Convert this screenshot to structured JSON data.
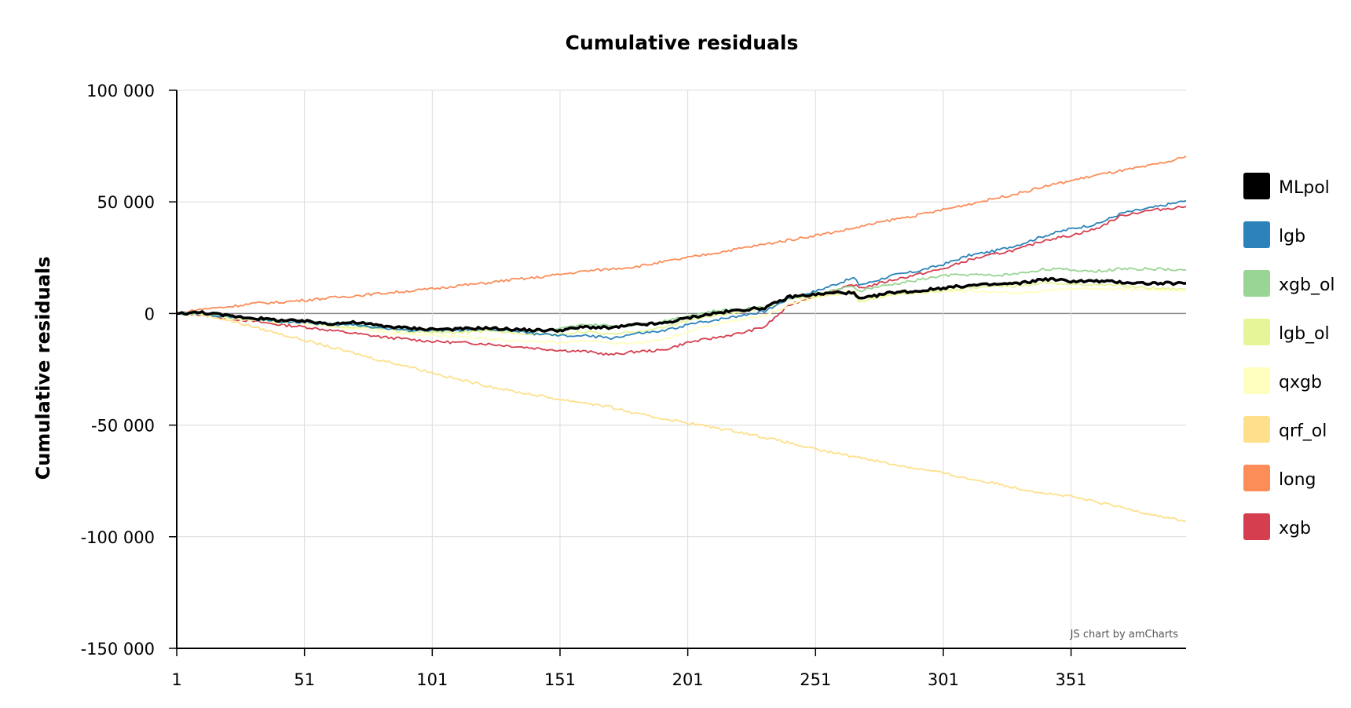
{
  "chart_data": {
    "type": "line",
    "title": "Cumulative residuals",
    "xlabel": "",
    "ylabel": "Cumulative residuals",
    "xlim": [
      1,
      396
    ],
    "ylim": [
      -150000,
      100000
    ],
    "x_ticks": [
      1,
      51,
      101,
      151,
      201,
      251,
      301,
      351
    ],
    "x_tick_labels": [
      "1",
      "51",
      "101",
      "151",
      "201",
      "251",
      "301",
      "351"
    ],
    "y_ticks": [
      100000,
      50000,
      0,
      -50000,
      -100000,
      -150000
    ],
    "y_tick_labels": [
      "100 000",
      "50 000",
      "0",
      "-50 000",
      "-100 000",
      "-150 000"
    ],
    "grid": true,
    "legend_position": "right",
    "credit": "JS chart by amCharts",
    "series": [
      {
        "name": "MLpol",
        "color": "#000000",
        "width": 3.5,
        "x": [
          1,
          11,
          21,
          31,
          41,
          51,
          61,
          71,
          81,
          91,
          101,
          111,
          121,
          131,
          141,
          151,
          161,
          171,
          181,
          191,
          201,
          211,
          221,
          231,
          241,
          251,
          261,
          266,
          268,
          271,
          281,
          291,
          301,
          311,
          321,
          331,
          341,
          351,
          361,
          371,
          381,
          396
        ],
        "y": [
          0,
          500,
          -1000,
          -2000,
          -3000,
          -3500,
          -4500,
          -4000,
          -5500,
          -6500,
          -7000,
          -7000,
          -6500,
          -7000,
          -7500,
          -7500,
          -6000,
          -6500,
          -5000,
          -4500,
          -2000,
          0,
          1500,
          2500,
          7500,
          8500,
          9500,
          9000,
          6500,
          7000,
          9500,
          10000,
          11500,
          12500,
          13000,
          13500,
          15500,
          14500,
          14500,
          14000,
          13500,
          13500
        ]
      },
      {
        "name": "lgb",
        "color": "#2b83ba",
        "width": 1.8,
        "x": [
          1,
          11,
          21,
          31,
          41,
          51,
          61,
          71,
          81,
          91,
          101,
          111,
          121,
          131,
          141,
          151,
          161,
          171,
          181,
          191,
          201,
          211,
          221,
          231,
          241,
          251,
          261,
          266,
          268,
          271,
          281,
          291,
          301,
          311,
          321,
          331,
          341,
          351,
          361,
          371,
          381,
          396
        ],
        "y": [
          0,
          0,
          -1500,
          -2500,
          -3500,
          -4000,
          -5000,
          -5000,
          -6500,
          -7500,
          -7500,
          -7500,
          -7000,
          -7500,
          -9000,
          -10000,
          -10000,
          -11000,
          -9000,
          -8000,
          -5000,
          -3000,
          -1000,
          1000,
          7000,
          10000,
          14000,
          16000,
          13000,
          13500,
          17000,
          19000,
          22000,
          26000,
          28000,
          31000,
          35000,
          38000,
          40000,
          45000,
          47000,
          50500
        ]
      },
      {
        "name": "xgb_ol",
        "color": "#99d594",
        "width": 1.8,
        "x": [
          1,
          11,
          21,
          31,
          41,
          51,
          61,
          71,
          81,
          91,
          101,
          111,
          121,
          131,
          141,
          151,
          161,
          171,
          181,
          191,
          201,
          211,
          221,
          231,
          241,
          251,
          261,
          266,
          268,
          271,
          281,
          291,
          301,
          311,
          321,
          331,
          341,
          351,
          361,
          371,
          381,
          396
        ],
        "y": [
          0,
          0,
          -1000,
          -2000,
          -3000,
          -3500,
          -4500,
          -5000,
          -6000,
          -7000,
          -7500,
          -7500,
          -7000,
          -7500,
          -8000,
          -7000,
          -5000,
          -5500,
          -5000,
          -3500,
          -1000,
          1000,
          2000,
          3000,
          7000,
          9000,
          11000,
          12000,
          10000,
          11000,
          13000,
          15000,
          17000,
          17500,
          17000,
          18000,
          20000,
          19500,
          19000,
          20000,
          20000,
          19500
        ]
      },
      {
        "name": "lgb_ol",
        "color": "#e6f598",
        "width": 1.8,
        "x": [
          1,
          11,
          21,
          31,
          41,
          51,
          61,
          71,
          81,
          91,
          101,
          111,
          121,
          131,
          141,
          151,
          161,
          171,
          181,
          191,
          201,
          211,
          221,
          231,
          241,
          251,
          261,
          266,
          268,
          271,
          281,
          291,
          301,
          311,
          321,
          331,
          341,
          351,
          361,
          371,
          381,
          396
        ],
        "y": [
          0,
          0,
          -1500,
          -2500,
          -3500,
          -4000,
          -5500,
          -6000,
          -7000,
          -8000,
          -8500,
          -8500,
          -8000,
          -8500,
          -9000,
          -9500,
          -8000,
          -9500,
          -8000,
          -6500,
          -3000,
          -1000,
          500,
          2000,
          6500,
          7500,
          9000,
          9000,
          5500,
          6000,
          8500,
          9500,
          10500,
          11500,
          12000,
          12500,
          14000,
          13000,
          13000,
          12500,
          11500,
          11000
        ]
      },
      {
        "name": "qxgb",
        "color": "#ffffbf",
        "width": 1.8,
        "x": [
          1,
          11,
          21,
          31,
          41,
          51,
          61,
          71,
          81,
          91,
          101,
          111,
          121,
          131,
          141,
          151,
          161,
          171,
          181,
          191,
          201,
          211,
          221,
          231,
          241,
          251,
          261,
          266,
          268,
          271,
          281,
          291,
          301,
          311,
          321,
          331,
          341,
          351,
          361,
          371,
          381,
          396
        ],
        "y": [
          0,
          0,
          -2000,
          -3000,
          -4000,
          -4500,
          -6000,
          -7000,
          -8000,
          -9000,
          -10000,
          -10500,
          -11000,
          -12000,
          -12500,
          -13000,
          -12000,
          -13500,
          -13000,
          -12000,
          -8000,
          -5000,
          -3000,
          -1000,
          4000,
          7000,
          9000,
          10000,
          6500,
          7000,
          8500,
          9000,
          10000,
          10000,
          9500,
          9000,
          10500,
          11000,
          11000,
          11000,
          10500,
          10000
        ]
      },
      {
        "name": "qrf_ol",
        "color": "#fee08b",
        "width": 1.8,
        "x": [
          1,
          11,
          21,
          31,
          41,
          51,
          61,
          71,
          81,
          91,
          101,
          111,
          121,
          131,
          141,
          151,
          161,
          171,
          181,
          191,
          201,
          211,
          221,
          231,
          241,
          251,
          261,
          271,
          281,
          291,
          301,
          311,
          321,
          331,
          341,
          351,
          361,
          371,
          381,
          391,
          396
        ],
        "y": [
          0,
          -500,
          -3000,
          -6000,
          -9000,
          -12000,
          -15000,
          -18000,
          -21000,
          -23500,
          -26500,
          -29500,
          -32000,
          -34500,
          -36500,
          -38500,
          -40000,
          -42000,
          -45000,
          -47000,
          -49000,
          -51000,
          -53000,
          -55500,
          -58000,
          -61000,
          -63000,
          -65000,
          -67500,
          -69500,
          -71500,
          -74000,
          -76000,
          -78500,
          -80500,
          -82000,
          -84500,
          -87000,
          -89500,
          -92000,
          -93000
        ]
      },
      {
        "name": "long",
        "color": "#fc8d59",
        "width": 1.8,
        "x": [
          1,
          11,
          21,
          31,
          41,
          51,
          61,
          71,
          81,
          91,
          101,
          111,
          121,
          131,
          141,
          151,
          161,
          171,
          181,
          191,
          201,
          211,
          221,
          231,
          241,
          251,
          261,
          271,
          281,
          291,
          301,
          311,
          321,
          331,
          341,
          351,
          361,
          371,
          381,
          391,
          396
        ],
        "y": [
          0,
          2000,
          3000,
          4500,
          5000,
          6000,
          7000,
          8000,
          9000,
          10000,
          11000,
          12500,
          13500,
          15000,
          16000,
          17500,
          19000,
          20000,
          21000,
          23000,
          25000,
          27000,
          29000,
          31000,
          33000,
          35000,
          37000,
          39500,
          42000,
          44000,
          46500,
          49000,
          51500,
          54000,
          57000,
          59500,
          62000,
          64000,
          66000,
          68500,
          70500
        ]
      },
      {
        "name": "xgb",
        "color": "#d53e4f",
        "width": 1.8,
        "x": [
          1,
          11,
          21,
          31,
          41,
          51,
          61,
          71,
          81,
          91,
          101,
          111,
          121,
          131,
          141,
          151,
          161,
          171,
          181,
          191,
          201,
          211,
          221,
          231,
          241,
          251,
          261,
          266,
          268,
          271,
          281,
          291,
          301,
          311,
          321,
          331,
          341,
          351,
          361,
          371,
          381,
          396
        ],
        "y": [
          0,
          -500,
          -2000,
          -3500,
          -5000,
          -6000,
          -7500,
          -9000,
          -10500,
          -11500,
          -12500,
          -13000,
          -13500,
          -14500,
          -15500,
          -16500,
          -17000,
          -18500,
          -17000,
          -16500,
          -13000,
          -11000,
          -9000,
          -6000,
          4000,
          8000,
          11000,
          13000,
          11500,
          12000,
          15000,
          17500,
          20000,
          24000,
          26500,
          29000,
          33000,
          35000,
          38000,
          44000,
          46000,
          48000
        ]
      }
    ]
  }
}
